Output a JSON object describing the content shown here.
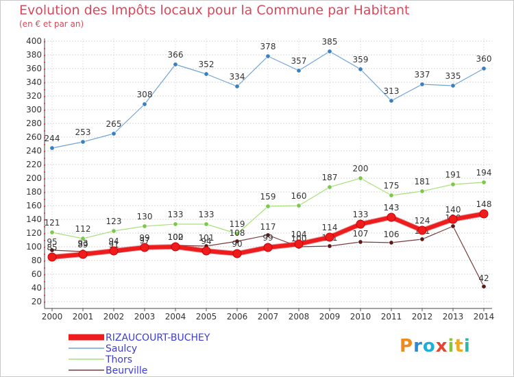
{
  "header": {
    "title": "Evolution des Impôts locaux pour la Commune par Habitant",
    "subtitle": "(en € et par an)"
  },
  "logo": {
    "p": "P",
    "r": "r",
    "o": "o",
    "x": "x",
    "i": "i",
    "t": "t",
    "i2": "i"
  },
  "chart_data": {
    "type": "line",
    "title": "Evolution des Impôts locaux pour la Commune par Habitant",
    "subtitle": "(en € et par an)",
    "xlabel": "",
    "ylabel": "",
    "ylim": [
      20,
      400
    ],
    "yticks": [
      20,
      40,
      60,
      80,
      100,
      120,
      140,
      160,
      180,
      200,
      220,
      240,
      260,
      280,
      300,
      320,
      340,
      360,
      380,
      400
    ],
    "grid": true,
    "legend_position": "bottom-left",
    "categories": [
      "2000",
      "2001",
      "2002",
      "2003",
      "2004",
      "2005",
      "2006",
      "2007",
      "2008",
      "2009",
      "2010",
      "2011",
      "2012",
      "2013",
      "2014"
    ],
    "series": [
      {
        "name": "Saulcy",
        "color": "#6fa3d8",
        "marker": "#3a7fc0",
        "width": 1.2,
        "values": [
          244,
          253,
          265,
          308,
          366,
          352,
          334,
          378,
          357,
          385,
          359,
          313,
          337,
          335,
          360
        ],
        "labels": [
          "244",
          "253",
          "265",
          "308",
          "366",
          "352",
          "334",
          "378",
          "357",
          "385",
          "359",
          "313",
          "337",
          "335",
          "360"
        ]
      },
      {
        "name": "Thors",
        "color": "#a8e07a",
        "marker": "#7cc84a",
        "width": 1.2,
        "values": [
          121,
          112,
          123,
          130,
          133,
          133,
          119,
          159,
          160,
          187,
          200,
          175,
          181,
          191,
          194
        ],
        "labels": [
          "121",
          "112",
          "123",
          "130",
          "133",
          "133",
          "119",
          "159",
          "160",
          "187",
          "200",
          "175",
          "181",
          "191",
          "194"
        ]
      },
      {
        "name": "Beurville",
        "color": "#7a3a3a",
        "marker": "#5a1a1a",
        "width": 1.2,
        "values": [
          95,
          93,
          91,
          97,
          102,
          101,
          108,
          117,
          100,
          101,
          107,
          106,
          111,
          130,
          42
        ],
        "labels": [
          "95",
          "93",
          "91",
          "97",
          "102",
          "101",
          "108",
          "117",
          "100",
          "101",
          "107",
          "106",
          "111",
          "130",
          "42"
        ]
      },
      {
        "name": "RIZAUCOURT-BUCHEY",
        "color": "#ee1c1c",
        "marker": "#ee1c1c",
        "width": 6,
        "values": [
          85,
          89,
          94,
          99,
          100,
          94,
          90,
          99,
          104,
          114,
          133,
          143,
          124,
          140,
          148
        ],
        "labels": [
          "85",
          "89",
          "94",
          "99",
          "100",
          "94",
          "90",
          "99",
          "104",
          "114",
          "133",
          "143",
          "124",
          "140",
          "148"
        ]
      }
    ],
    "legend": [
      "RIZAUCOURT-BUCHEY",
      "Saulcy",
      "Thors",
      "Beurville"
    ]
  }
}
